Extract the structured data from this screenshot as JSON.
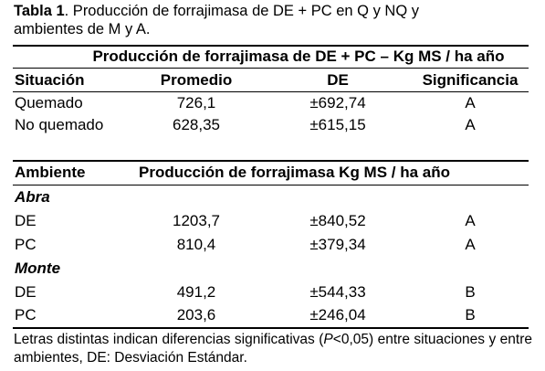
{
  "caption": {
    "label": "Tabla 1",
    "text_line1": ". Producción de forrajimasa de DE + PC en Q y NQ y",
    "text_line2": "ambientes de M y A."
  },
  "table1": {
    "span_header": "Producción de forrajimasa de DE + PC – Kg MS / ha año",
    "columns": [
      "Situación",
      "Promedio",
      "DE",
      "Significancia"
    ],
    "rows": [
      [
        "Quemado",
        "726,1",
        "±692,74",
        "A"
      ],
      [
        "No quemado",
        "628,35",
        "±615,15",
        "A"
      ]
    ]
  },
  "table2": {
    "header_col": "Ambiente",
    "header_span": "Producción de forrajimasa Kg MS / ha año",
    "groups": [
      {
        "name": "Abra",
        "rows": [
          [
            "DE",
            "1203,7",
            "±840,52",
            "A"
          ],
          [
            "PC",
            "810,4",
            "±379,34",
            "A"
          ]
        ]
      },
      {
        "name": "Monte",
        "rows": [
          [
            "DE",
            "491,2",
            "±544,33",
            "B"
          ],
          [
            "PC",
            "203,6",
            "±246,04",
            "B"
          ]
        ]
      }
    ]
  },
  "footnote": {
    "part1": "Letras distintas indican diferencias significativas (",
    "p_symbol": "P",
    "part2": "<0,05) entre situaciones y entre ambientes, DE: Desviación Estándar."
  }
}
